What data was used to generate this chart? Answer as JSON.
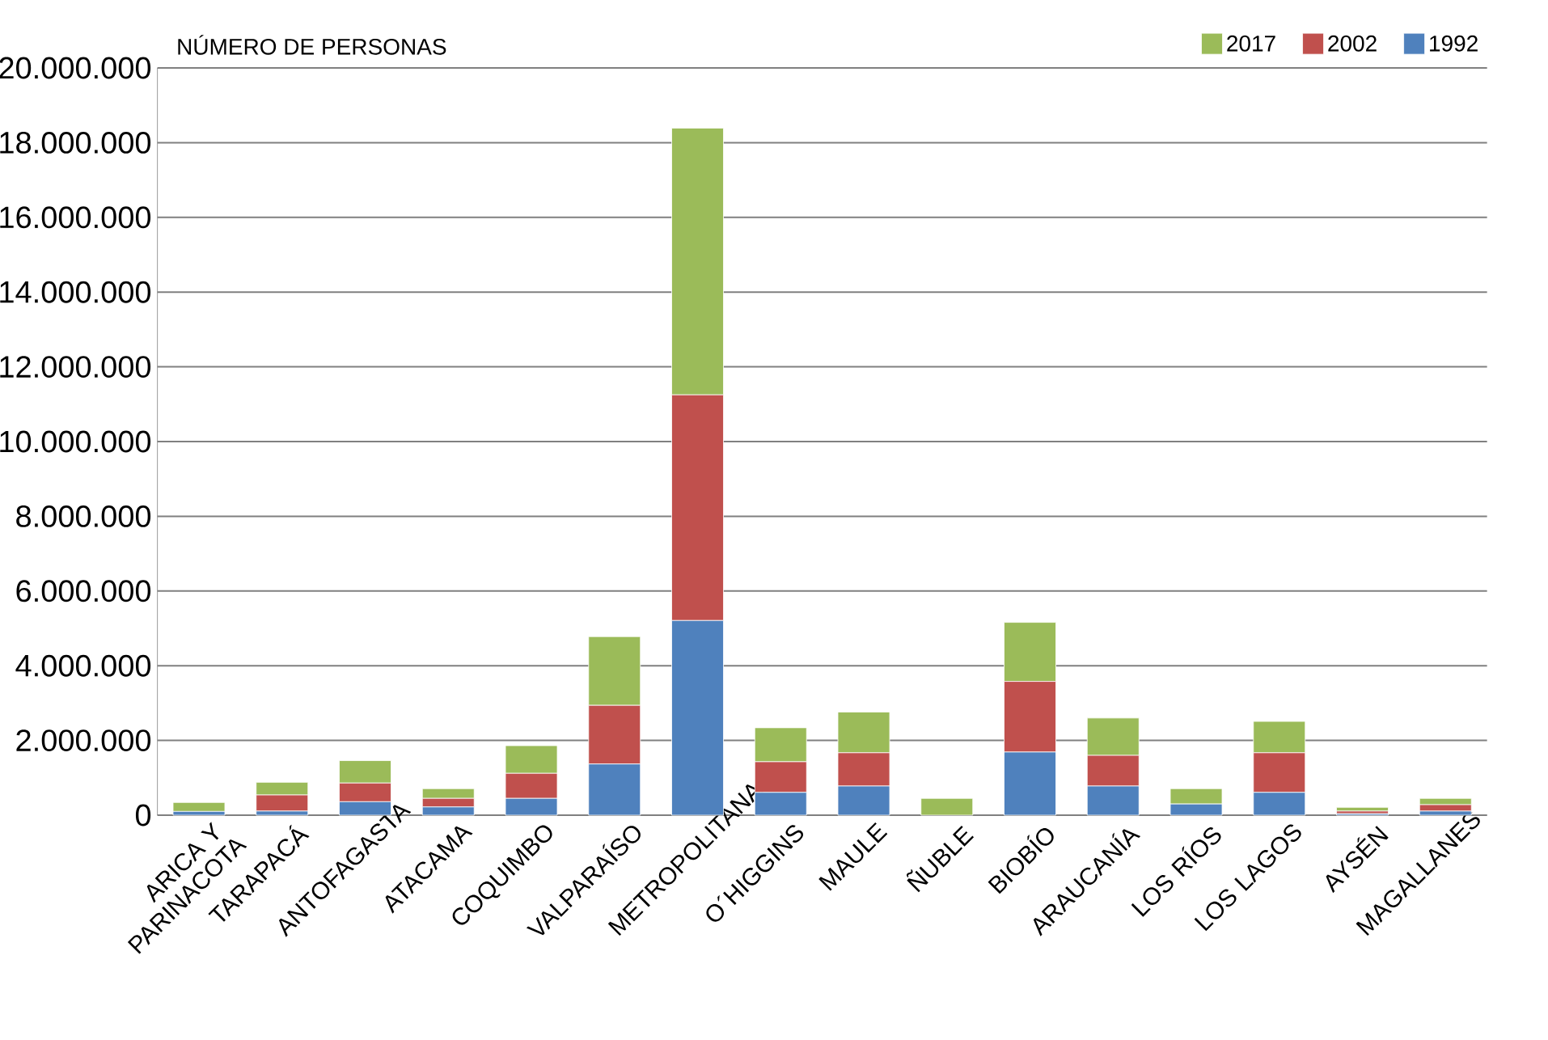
{
  "chart_data": {
    "type": "bar",
    "stacked": true,
    "title": "NÚMERO DE PERSONAS",
    "categories": [
      "ARICA Y PARINACOTA",
      "TARAPACÁ",
      "ANTOFAGASTA",
      "ATACAMA",
      "COQUIMBO",
      "VALPARAÍSO",
      "METROPOLITANA",
      "O´HIGGINS",
      "MAULE",
      "ÑUBLE",
      "BIOBÍO",
      "ARAUCANÍA",
      "LOS RÍOS",
      "LOS LAGOS",
      "AYSÉN",
      "MAGALLANES"
    ],
    "series": [
      {
        "name": "1992",
        "color": "#4f81bd",
        "values": [
          100000,
          110000,
          360000,
          220000,
          450000,
          1370000,
          5210000,
          610000,
          780000,
          0,
          1690000,
          780000,
          300000,
          610000,
          40000,
          110000
        ]
      },
      {
        "name": "2002",
        "color": "#c0504d",
        "values": [
          null,
          430000,
          500000,
          230000,
          670000,
          1570000,
          6040000,
          820000,
          890000,
          0,
          1890000,
          820000,
          0,
          1060000,
          70000,
          170000
        ]
      },
      {
        "name": "2017",
        "color": "#9bbb59",
        "values": [
          240000,
          340000,
          600000,
          260000,
          740000,
          1840000,
          7140000,
          910000,
          1090000,
          450000,
          1580000,
          1000000,
          410000,
          840000,
          100000,
          170000
        ]
      }
    ],
    "ylim": [
      0,
      20000000
    ],
    "yticks": [
      {
        "value": 0,
        "label": "0"
      },
      {
        "value": 2000000,
        "label": "2.000.000"
      },
      {
        "value": 4000000,
        "label": "4.000.000"
      },
      {
        "value": 6000000,
        "label": "6.000.000"
      },
      {
        "value": 8000000,
        "label": "8.000.000"
      },
      {
        "value": 10000000,
        "label": "10.000.000"
      },
      {
        "value": 12000000,
        "label": "12.000.000"
      },
      {
        "value": 14000000,
        "label": "14.000.000"
      },
      {
        "value": 16000000,
        "label": "16.000.000"
      },
      {
        "value": 18000000,
        "label": "18.000.000"
      },
      {
        "value": 20000000,
        "label": "20.000.000"
      }
    ],
    "grid": "y",
    "legend": "top right"
  }
}
